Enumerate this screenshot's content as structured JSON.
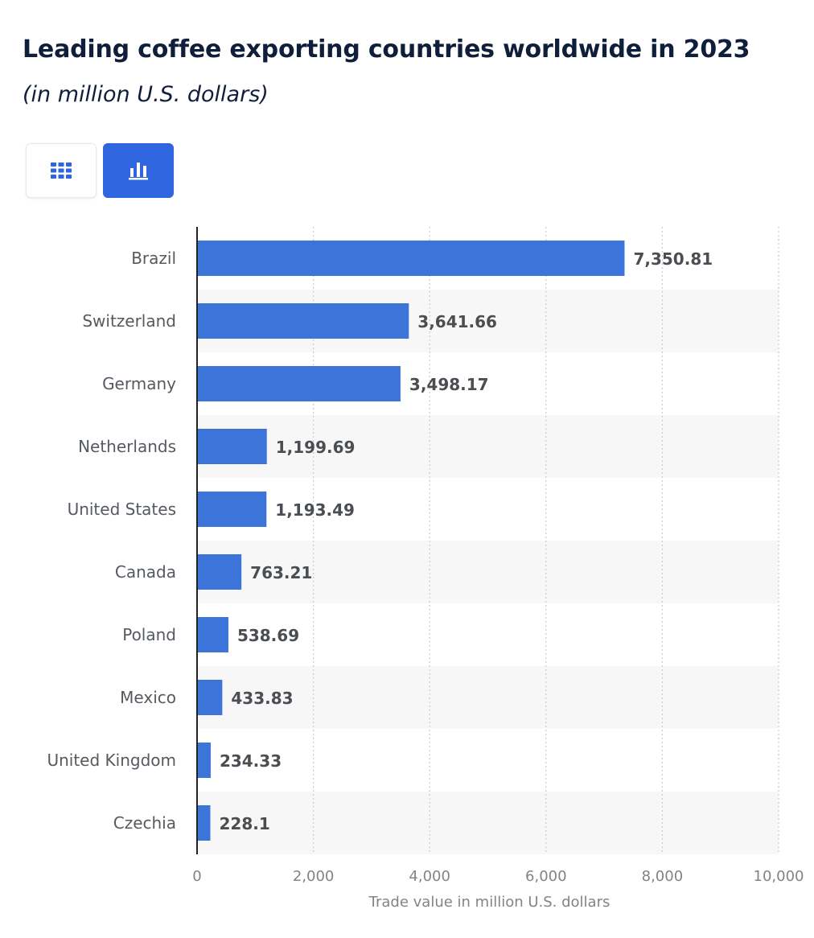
{
  "header": {
    "title": "Leading coffee exporting countries worldwide in 2023",
    "subtitle": "(in million U.S. dollars)"
  },
  "toggles": {
    "table_icon": "grid-icon",
    "chart_icon": "bar-chart-icon",
    "active": "chart"
  },
  "colors": {
    "bar": "#3d74d9",
    "accent": "#2f66e0",
    "title": "#0f1e3a",
    "band": "#f7f7f7",
    "grid": "#c9cbcf"
  },
  "chart_data": {
    "type": "bar",
    "orientation": "horizontal",
    "title": "Leading coffee exporting countries worldwide in 2023",
    "subtitle": "(in million U.S. dollars)",
    "categories": [
      "Brazil",
      "Switzerland",
      "Germany",
      "Netherlands",
      "United States",
      "Canada",
      "Poland",
      "Mexico",
      "United Kingdom",
      "Czechia"
    ],
    "values": [
      7350.81,
      3641.66,
      3498.17,
      1199.69,
      1193.49,
      763.21,
      538.69,
      433.83,
      234.33,
      228.1
    ],
    "value_labels": [
      "7,350.81",
      "3,641.66",
      "3,498.17",
      "1,199.69",
      "1,193.49",
      "763.21",
      "538.69",
      "433.83",
      "234.33",
      "228.1"
    ],
    "xlabel": "Trade value in million U.S. dollars",
    "ylabel": "",
    "xlim": [
      0,
      10000
    ],
    "xticks": [
      0,
      2000,
      4000,
      6000,
      8000,
      10000
    ],
    "xtick_labels": [
      "0",
      "2,000",
      "4,000",
      "6,000",
      "8,000",
      "10,000"
    ],
    "grid": "vertical-dotted",
    "legend": "none"
  }
}
